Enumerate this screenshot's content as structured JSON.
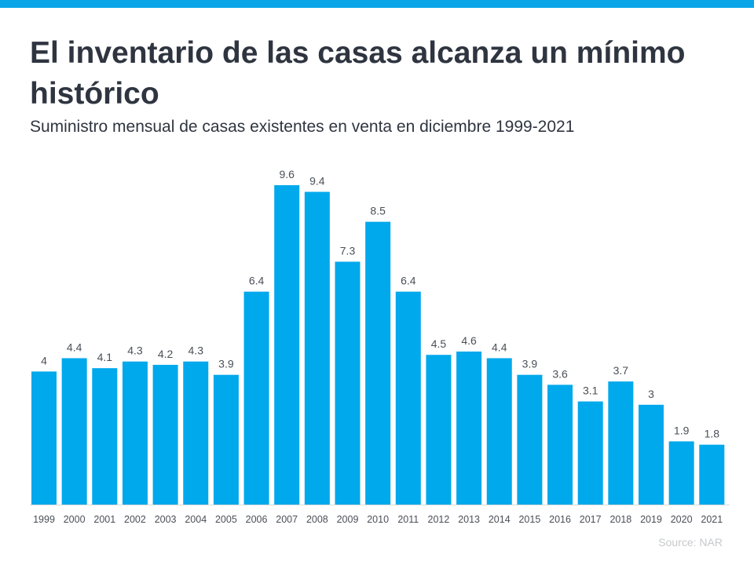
{
  "title": "El inventario de las casas alcanza un mínimo histórico",
  "subtitle": "Suministro mensual de casas existentes en venta  en diciembre 1999-2021",
  "source": "Source: NAR",
  "colors": {
    "accent": "#0aa5e8",
    "bar": "#00a8ec",
    "text": "#2f3540",
    "label": "#4a4f57",
    "source": "#c7c9cc"
  },
  "chart_data": {
    "type": "bar",
    "title": "El inventario de las casas alcanza un mínimo histórico",
    "xlabel": "",
    "ylabel": "",
    "ylim": [
      0,
      9.6
    ],
    "grid": false,
    "categories": [
      "1999",
      "2000",
      "2001",
      "2002",
      "2003",
      "2004",
      "2005",
      "2006",
      "2007",
      "2008",
      "2009",
      "2010",
      "2011",
      "2012",
      "2013",
      "2014",
      "2015",
      "2016",
      "2017",
      "2018",
      "2019",
      "2020",
      "2021"
    ],
    "values": [
      4,
      4.4,
      4.1,
      4.3,
      4.2,
      4.3,
      3.9,
      6.4,
      9.6,
      9.4,
      7.3,
      8.5,
      6.4,
      4.5,
      4.6,
      4.4,
      3.9,
      3.6,
      3.1,
      3.7,
      3,
      1.9,
      1.8
    ]
  }
}
